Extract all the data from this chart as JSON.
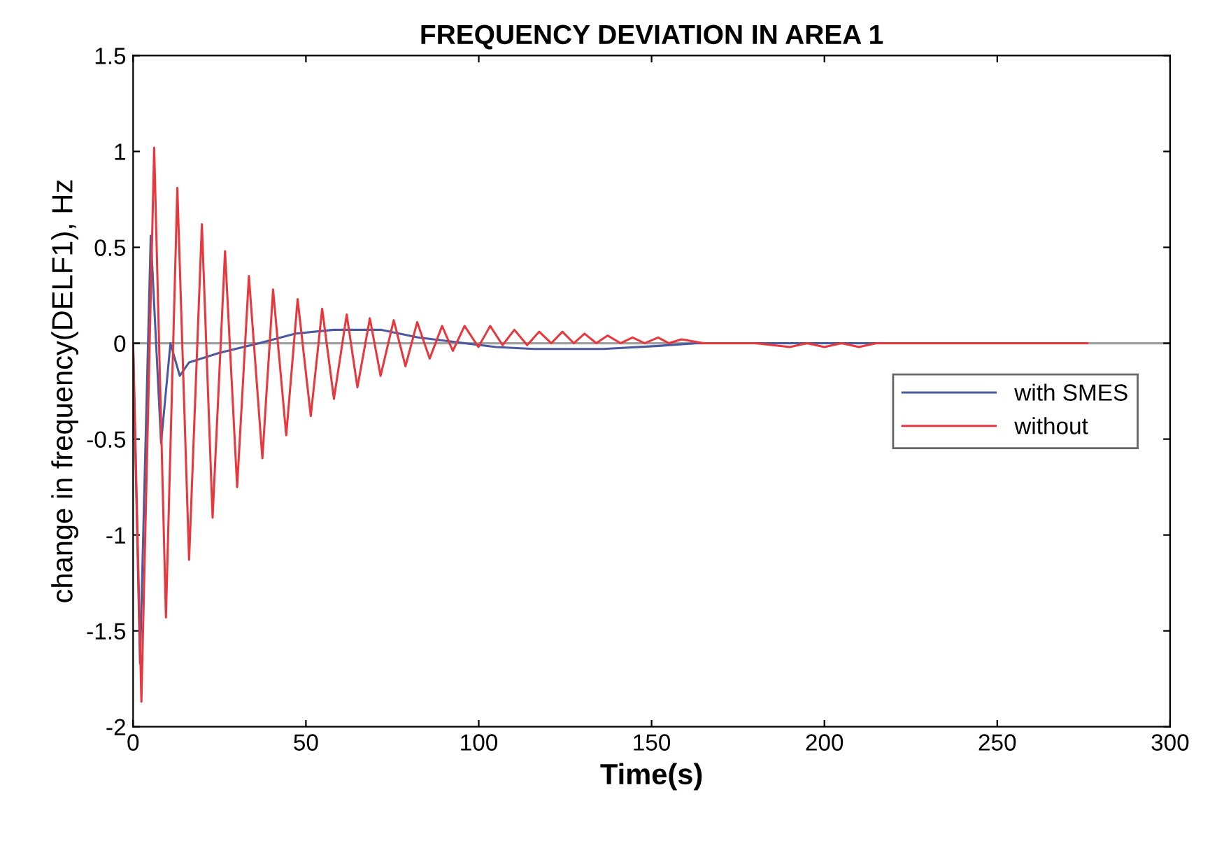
{
  "chart_data": {
    "type": "line",
    "title": "FREQUENCY DEVIATION IN AREA 1",
    "xlabel": "Time(s)",
    "ylabel": "change in frequency(DELF1), Hz",
    "xlim": [
      0,
      300
    ],
    "xticks": [
      0,
      50,
      100,
      150,
      200,
      250,
      300
    ],
    "ylim": [
      -2,
      1.5
    ],
    "yticks": [
      -2,
      -1.5,
      -1,
      -0.5,
      0,
      0.5,
      1,
      1.5
    ],
    "grid": false,
    "legend": "right",
    "marker": "none",
    "line_style": "solid",
    "ref_lines": [
      {
        "axis": "y",
        "value": 0,
        "color": "#a0a0a0"
      }
    ],
    "series": [
      {
        "name": "with SMES",
        "color": "#4a5a9e",
        "x": [
          0,
          0.5,
          2,
          5.1,
          8.1,
          10.8,
          13.5,
          16.2,
          25,
          36.5,
          47,
          58,
          71.6,
          82.4,
          95.9,
          105,
          116,
          136,
          152,
          163,
          215
        ],
        "values": [
          0,
          -0.43,
          -1.67,
          0.56,
          -0.52,
          0,
          -0.17,
          -0.1,
          -0.05,
          0,
          0.05,
          0.07,
          0.07,
          0.03,
          0,
          -0.02,
          -0.03,
          -0.03,
          -0.014,
          0,
          0
        ]
      },
      {
        "name": "without",
        "color": "#e8383d",
        "x": [
          0,
          2.4,
          6.1,
          9.5,
          12.8,
          16.2,
          19.9,
          23,
          26.6,
          30.1,
          33.5,
          37.4,
          40.5,
          44.3,
          47.6,
          51.4,
          54.7,
          58.1,
          61.8,
          64.9,
          68.5,
          71.6,
          75.4,
          78.8,
          82.2,
          85.8,
          89.4,
          92.5,
          95.9,
          99.9,
          103.3,
          106.9,
          110.3,
          114,
          117.5,
          121,
          124.2,
          127.5,
          130.6,
          134,
          137.3,
          141,
          144.5,
          148,
          151.9,
          155,
          158.7,
          165,
          180,
          190,
          195,
          200,
          205,
          210,
          215,
          276
        ],
        "values": [
          0,
          -1.87,
          1.02,
          -1.43,
          0.81,
          -1.13,
          0.62,
          -0.91,
          0.48,
          -0.75,
          0.35,
          -0.6,
          0.28,
          -0.48,
          0.23,
          -0.38,
          0.18,
          -0.29,
          0.15,
          -0.23,
          0.13,
          -0.17,
          0.12,
          -0.12,
          0.11,
          -0.08,
          0.09,
          -0.04,
          0.09,
          -0.02,
          0.09,
          -0.01,
          0.07,
          -0.01,
          0.06,
          0,
          0.06,
          0,
          0.05,
          0,
          0.04,
          0,
          0.03,
          0,
          0.03,
          0,
          0.02,
          0,
          0,
          -0.02,
          0,
          -0.02,
          0,
          -0.02,
          0,
          0
        ]
      }
    ]
  }
}
